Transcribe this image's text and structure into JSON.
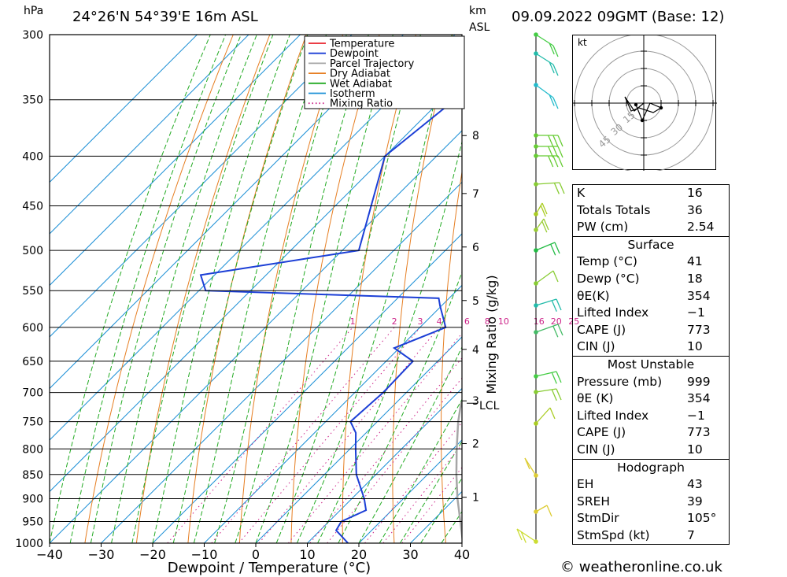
{
  "header": {
    "pressure_unit": "hPa",
    "location": "24°26'N  54°39'E  16m  ASL",
    "km_unit": "km",
    "asl_unit": "ASL",
    "datetime": "09.09.2022  09GMT  (Base: 12)"
  },
  "chart_data": {
    "type": "line",
    "title": "",
    "xlabel": "Dewpoint / Temperature (°C)",
    "ylabel": "hPa",
    "right_label": "Mixing Ratio (g/kg)",
    "xlim": [
      -40,
      40
    ],
    "ylim": [
      1000,
      300
    ],
    "y_scale": "log",
    "skew": "isotherms slanted to the right",
    "grid": true,
    "legend_position": "top-right",
    "x_ticks": [
      "−40",
      "−30",
      "−20",
      "−10",
      "0",
      "10",
      "20",
      "30",
      "40"
    ],
    "pressure_levels": [
      300,
      350,
      400,
      450,
      500,
      550,
      600,
      650,
      700,
      750,
      800,
      850,
      900,
      950,
      1000
    ],
    "height_km": [
      {
        "km": "8",
        "p": 381
      },
      {
        "km": "7",
        "p": 437
      },
      {
        "km": "6",
        "p": 496
      },
      {
        "km": "5",
        "p": 563
      },
      {
        "km": "4",
        "p": 632
      },
      {
        "km": "3",
        "p": 714
      },
      {
        "km": "2",
        "p": 790
      },
      {
        "km": "1",
        "p": 897
      }
    ],
    "lcl": {
      "label": "LCL",
      "p": 718
    },
    "mixing_ratio_labels": [
      "1",
      "2",
      "3",
      "4",
      "6",
      "8",
      "10",
      "16",
      "20",
      "25"
    ],
    "legend": [
      "Temperature",
      "Dewpoint",
      "Parcel Trajectory",
      "Dry Adiabat",
      "Wet Adiabat",
      "Isotherm",
      "Mixing Ratio"
    ],
    "colors": {
      "temperature": "#e8232b",
      "dewpoint": "#1c3fd6",
      "parcel": "#a6a6a6",
      "dry_adiabat": "#e67e22",
      "wet_adiabat": "#22aa22",
      "isotherm": "#1e90d6",
      "mixing_ratio": "#cc2288"
    },
    "series": [
      {
        "name": "Temperature",
        "points": [
          [
            1000,
            40.2
          ],
          [
            990,
            39.9
          ],
          [
            980,
            39.2
          ],
          [
            950,
            36.8
          ],
          [
            900,
            32.5
          ],
          [
            850,
            28.7
          ],
          [
            800,
            25.6
          ],
          [
            750,
            24.5
          ],
          [
            700,
            20.2
          ],
          [
            650,
            16.5
          ],
          [
            600,
            13.5
          ],
          [
            570,
            10.7
          ],
          [
            550,
            12.4
          ],
          [
            530,
            10.0
          ],
          [
            500,
            7.4
          ],
          [
            450,
            1.5
          ],
          [
            400,
            -4.7
          ],
          [
            350,
            -13.2
          ],
          [
            300,
            -24.0
          ]
        ]
      },
      {
        "name": "Dewpoint",
        "points": [
          [
            1000,
            17.9
          ],
          [
            970,
            13.1
          ],
          [
            950,
            12.4
          ],
          [
            925,
            15.0
          ],
          [
            900,
            12.4
          ],
          [
            850,
            6.2
          ],
          [
            800,
            1.1
          ],
          [
            770,
            -2.0
          ],
          [
            750,
            -5.2
          ],
          [
            700,
            -4.5
          ],
          [
            650,
            -4.8
          ],
          [
            630,
            -11.0
          ],
          [
            600,
            -5.0
          ],
          [
            570,
            -10.3
          ],
          [
            560,
            -12.0
          ],
          [
            550,
            -58.7
          ],
          [
            530,
            -62.7
          ],
          [
            500,
            -36.8
          ],
          [
            400,
            -50.0
          ],
          [
            350,
            -47.4
          ],
          [
            300,
            -49.8
          ]
        ]
      },
      {
        "name": "Parcel Trajectory",
        "points": [
          [
            1000,
            40.2
          ],
          [
            950,
            35.5
          ],
          [
            900,
            30.5
          ],
          [
            850,
            25.6
          ],
          [
            800,
            20.7
          ],
          [
            750,
            15.7
          ],
          [
            718,
            12.7
          ],
          [
            700,
            12.0
          ],
          [
            650,
            10.7
          ],
          [
            600,
            9.3
          ],
          [
            550,
            8.2
          ],
          [
            500,
            6.2
          ],
          [
            450,
            3.1
          ],
          [
            400,
            -1.5
          ],
          [
            370,
            -4.7
          ]
        ]
      }
    ]
  },
  "legend_items": [
    {
      "label": "Temperature",
      "color": "#e8232b",
      "style": "solid"
    },
    {
      "label": "Dewpoint",
      "color": "#1c3fd6",
      "style": "solid"
    },
    {
      "label": "Parcel Trajectory",
      "color": "#a6a6a6",
      "style": "solid"
    },
    {
      "label": "Dry Adiabat",
      "color": "#e67e22",
      "style": "solid"
    },
    {
      "label": "Wet Adiabat",
      "color": "#22aa22",
      "style": "solid"
    },
    {
      "label": "Isotherm",
      "color": "#1e90d6",
      "style": "solid"
    },
    {
      "label": "Mixing Ratio",
      "color": "#cc2288",
      "style": "dotted"
    }
  ],
  "hodograph": {
    "unit": "kt",
    "ring_labels": [
      "15",
      "30",
      "45"
    ]
  },
  "indices": [
    {
      "label": "K",
      "value": "16"
    },
    {
      "label": "Totals Totals",
      "value": "36"
    },
    {
      "label": "PW (cm)",
      "value": "2.54"
    }
  ],
  "surface": {
    "title": "Surface",
    "rows": [
      {
        "label": "Temp (°C)",
        "value": "41"
      },
      {
        "label": "Dewp (°C)",
        "value": "18"
      },
      {
        "label": "θE(K)",
        "value": "354"
      },
      {
        "label": "Lifted Index",
        "value": "−1"
      },
      {
        "label": "CAPE (J)",
        "value": "773"
      },
      {
        "label": "CIN (J)",
        "value": "10"
      }
    ]
  },
  "most_unstable": {
    "title": "Most Unstable",
    "rows": [
      {
        "label": "Pressure (mb)",
        "value": "999"
      },
      {
        "label": "θE (K)",
        "value": "354"
      },
      {
        "label": "Lifted Index",
        "value": "−1"
      },
      {
        "label": "CAPE (J)",
        "value": "773"
      },
      {
        "label": "CIN (J)",
        "value": "10"
      }
    ]
  },
  "hodograph_indices": {
    "title": "Hodograph",
    "rows": [
      {
        "label": "EH",
        "value": "43"
      },
      {
        "label": "SREH",
        "value": "39"
      },
      {
        "label": "StmDir",
        "value": "105°"
      },
      {
        "label": "StmSpd (kt)",
        "value": "7"
      }
    ]
  },
  "copyright": "© weatheronline.co.uk"
}
